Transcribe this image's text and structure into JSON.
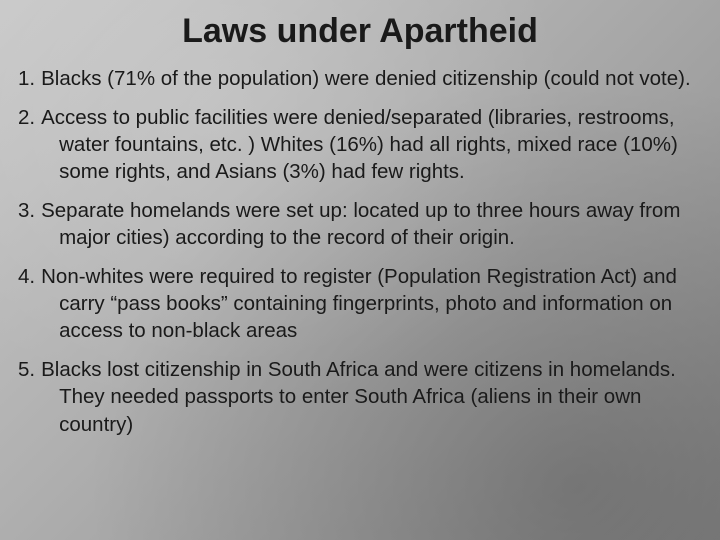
{
  "title": "Laws under Apartheid",
  "text_color": "#1a1a1a",
  "title_fontsize": 34,
  "body_fontsize": 20.5,
  "background_gradient": [
    "#c8c8c8",
    "#b0b0b0",
    "#888888"
  ],
  "items": [
    {
      "num": "1.",
      "text": "Blacks (71% of the population) were denied citizenship (could not vote)."
    },
    {
      "num": "2.",
      "text": "Access to public facilities were denied/separated (libraries, restrooms, water fountains, etc. ) Whites (16%) had all rights, mixed race (10%) some rights, and Asians (3%) had few rights."
    },
    {
      "num": "3.",
      "text": "Separate homelands were set up: located up to three hours away from major cities) according to the record of their origin."
    },
    {
      "num": "4.",
      "text": "Non-whites were required to register (Population Registration Act) and carry “pass books” containing fingerprints, photo and information on access to non-black areas"
    },
    {
      "num": "5.",
      "text": "Blacks lost citizenship in South Africa and were citizens in homelands.  They needed passports to enter South Africa (aliens in their own country)"
    }
  ]
}
